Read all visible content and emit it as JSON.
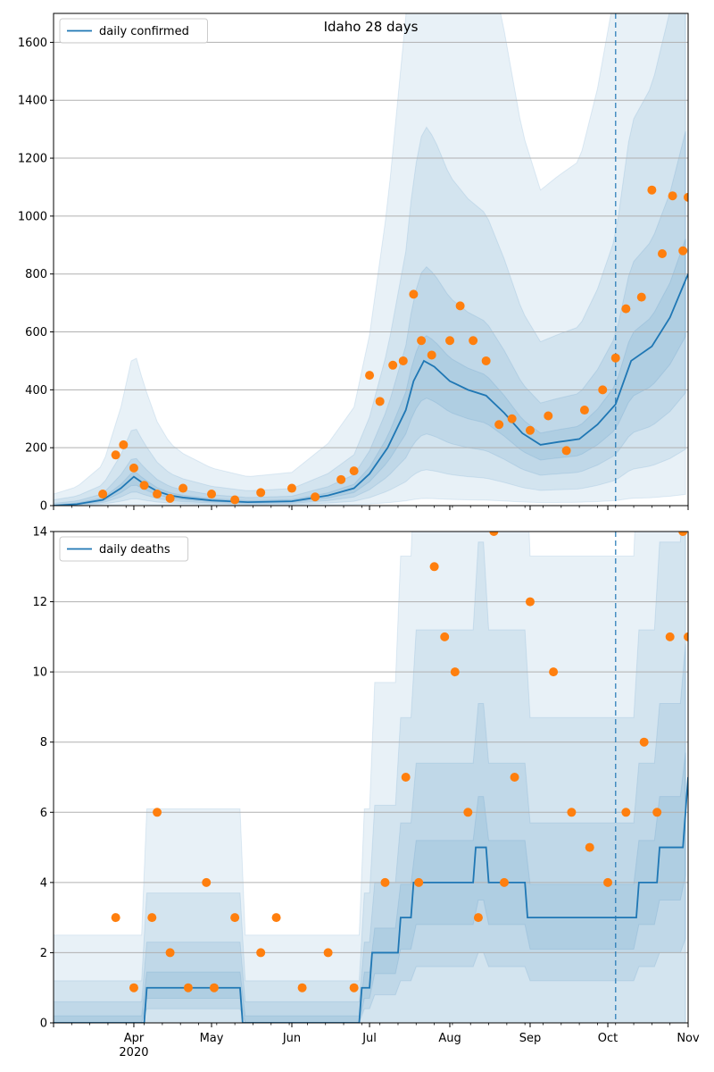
{
  "chart_data": [
    {
      "type": "line",
      "title": "Idaho 28 days",
      "xlabel": "",
      "ylabel": "",
      "x_range": [
        "2020-03-01",
        "2020-11-01"
      ],
      "ylim": [
        0,
        1700
      ],
      "yticks": [
        0,
        200,
        400,
        600,
        800,
        1000,
        1200,
        1400,
        1600
      ],
      "grid": "horizontal",
      "legend": {
        "placement": "top-left",
        "entries": [
          "daily confirmed"
        ]
      },
      "forecast_start": "2020-10-04",
      "colors": {
        "line": "#1f77b4",
        "points": "#ff7f0e",
        "band": "#1f77b4"
      },
      "series": [
        {
          "name": "daily confirmed",
          "kind": "line",
          "x": [
            "2020-03-01",
            "2020-03-10",
            "2020-03-20",
            "2020-03-27",
            "2020-04-01",
            "2020-04-05",
            "2020-04-10",
            "2020-04-15",
            "2020-04-20",
            "2020-05-01",
            "2020-05-15",
            "2020-06-01",
            "2020-06-15",
            "2020-06-25",
            "2020-07-01",
            "2020-07-08",
            "2020-07-15",
            "2020-07-18",
            "2020-07-22",
            "2020-07-26",
            "2020-08-01",
            "2020-08-08",
            "2020-08-15",
            "2020-08-22",
            "2020-08-29",
            "2020-09-05",
            "2020-09-12",
            "2020-09-20",
            "2020-09-27",
            "2020-10-04",
            "2020-10-10",
            "2020-10-18",
            "2020-10-25",
            "2020-11-01"
          ],
          "y": [
            0,
            5,
            20,
            60,
            100,
            75,
            50,
            35,
            28,
            18,
            12,
            15,
            35,
            60,
            110,
            200,
            330,
            430,
            500,
            480,
            430,
            400,
            380,
            320,
            250,
            210,
            220,
            230,
            280,
            350,
            500,
            550,
            650,
            800
          ]
        },
        {
          "name": "daily confirmed points",
          "kind": "scatter",
          "x": [
            "2020-03-20",
            "2020-03-25",
            "2020-03-28",
            "2020-04-01",
            "2020-04-05",
            "2020-04-10",
            "2020-04-15",
            "2020-04-20",
            "2020-05-01",
            "2020-05-10",
            "2020-05-20",
            "2020-06-01",
            "2020-06-10",
            "2020-06-20",
            "2020-06-25",
            "2020-07-01",
            "2020-07-05",
            "2020-07-10",
            "2020-07-14",
            "2020-07-18",
            "2020-07-21",
            "2020-07-25",
            "2020-08-01",
            "2020-08-05",
            "2020-08-10",
            "2020-08-15",
            "2020-08-20",
            "2020-08-25",
            "2020-09-01",
            "2020-09-08",
            "2020-09-15",
            "2020-09-22",
            "2020-09-29",
            "2020-10-04",
            "2020-10-08",
            "2020-10-14",
            "2020-10-18",
            "2020-10-22",
            "2020-10-26",
            "2020-10-30",
            "2020-11-01"
          ],
          "y": [
            40,
            175,
            210,
            130,
            70,
            40,
            25,
            60,
            40,
            20,
            45,
            60,
            30,
            90,
            120,
            450,
            360,
            485,
            500,
            730,
            570,
            520,
            570,
            690,
            570,
            500,
            280,
            300,
            260,
            310,
            190,
            330,
            400,
            510,
            680,
            720,
            1090,
            870,
            1070,
            880,
            1065
          ]
        }
      ],
      "band_levels": 4
    },
    {
      "type": "line",
      "title": "",
      "xlabel": "",
      "ylabel": "",
      "x_range": [
        "2020-03-01",
        "2020-11-01"
      ],
      "ylim": [
        0,
        14
      ],
      "yticks": [
        0,
        2,
        4,
        6,
        8,
        10,
        12,
        14
      ],
      "xticks": [
        "Apr\n2020",
        "May",
        "Jun",
        "Jul",
        "Aug",
        "Sep",
        "Oct",
        "Nov"
      ],
      "grid": "horizontal",
      "legend": {
        "placement": "top-left",
        "entries": [
          "daily deaths"
        ]
      },
      "forecast_start": "2020-10-04",
      "colors": {
        "line": "#1f77b4",
        "points": "#ff7f0e",
        "band": "#1f77b4"
      },
      "series": [
        {
          "name": "daily deaths",
          "kind": "line",
          "x": [
            "2020-03-01",
            "2020-04-05",
            "2020-04-06",
            "2020-05-12",
            "2020-05-13",
            "2020-06-27",
            "2020-06-28",
            "2020-07-01",
            "2020-07-02",
            "2020-07-12",
            "2020-07-13",
            "2020-07-17",
            "2020-07-18",
            "2020-08-10",
            "2020-08-11",
            "2020-08-15",
            "2020-08-16",
            "2020-08-30",
            "2020-08-31",
            "2020-10-12",
            "2020-10-13",
            "2020-10-20",
            "2020-10-21",
            "2020-10-30",
            "2020-10-31",
            "2020-11-01"
          ],
          "y": [
            0,
            0,
            1,
            1,
            0,
            0,
            1,
            1,
            2,
            2,
            3,
            3,
            4,
            4,
            5,
            5,
            4,
            4,
            3,
            3,
            4,
            4,
            5,
            5,
            6,
            7
          ]
        },
        {
          "name": "daily deaths points",
          "kind": "scatter",
          "x": [
            "2020-03-25",
            "2020-04-01",
            "2020-04-08",
            "2020-04-10",
            "2020-04-15",
            "2020-04-22",
            "2020-04-29",
            "2020-05-02",
            "2020-05-10",
            "2020-05-20",
            "2020-05-26",
            "2020-06-05",
            "2020-06-15",
            "2020-06-25",
            "2020-07-07",
            "2020-07-15",
            "2020-07-20",
            "2020-07-26",
            "2020-07-30",
            "2020-08-03",
            "2020-08-08",
            "2020-08-12",
            "2020-08-18",
            "2020-08-22",
            "2020-08-26",
            "2020-09-01",
            "2020-09-10",
            "2020-09-17",
            "2020-09-24",
            "2020-10-01",
            "2020-10-08",
            "2020-10-15",
            "2020-10-20",
            "2020-10-25",
            "2020-10-30",
            "2020-11-01"
          ],
          "y": [
            3,
            1,
            3,
            6,
            2,
            1,
            4,
            1,
            3,
            2,
            3,
            1,
            2,
            1,
            4,
            7,
            4,
            13,
            11,
            10,
            6,
            3,
            14,
            4,
            7,
            12,
            10,
            6,
            5,
            4,
            6,
            8,
            6,
            11,
            14,
            11
          ]
        }
      ],
      "band_levels": 4
    }
  ]
}
